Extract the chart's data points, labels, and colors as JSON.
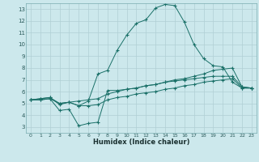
{
  "xlabel": "Humidex (Indice chaleur)",
  "background_color": "#cce8ec",
  "grid_color": "#b0cfd4",
  "line_color": "#1a7068",
  "xlim": [
    -0.5,
    23.5
  ],
  "ylim": [
    2.5,
    13.5
  ],
  "xticks": [
    0,
    1,
    2,
    3,
    4,
    5,
    6,
    7,
    8,
    9,
    10,
    11,
    12,
    13,
    14,
    15,
    16,
    17,
    18,
    19,
    20,
    21,
    22,
    23
  ],
  "yticks": [
    3,
    4,
    5,
    6,
    7,
    8,
    9,
    10,
    11,
    12,
    13
  ],
  "series1_x": [
    0,
    1,
    2,
    3,
    4,
    5,
    6,
    7,
    8,
    9,
    10,
    11,
    12,
    13,
    14,
    15,
    16,
    17,
    18,
    19,
    20,
    21,
    22,
    23
  ],
  "series1_y": [
    5.3,
    5.4,
    5.5,
    4.9,
    5.1,
    4.8,
    5.2,
    7.5,
    7.8,
    9.5,
    10.8,
    11.8,
    12.1,
    13.1,
    13.4,
    13.3,
    11.9,
    10.0,
    8.8,
    8.2,
    8.1,
    6.8,
    6.3,
    6.3
  ],
  "series2_x": [
    0,
    1,
    2,
    3,
    4,
    5,
    6,
    7,
    8,
    9,
    10,
    11,
    12,
    13,
    14,
    15,
    16,
    17,
    18,
    19,
    20,
    21,
    22,
    23
  ],
  "series2_y": [
    5.3,
    5.4,
    5.5,
    5.0,
    5.1,
    5.2,
    5.3,
    5.4,
    5.8,
    6.0,
    6.2,
    6.3,
    6.5,
    6.6,
    6.8,
    7.0,
    7.1,
    7.3,
    7.5,
    7.8,
    7.9,
    8.0,
    6.4,
    6.3
  ],
  "series3_x": [
    0,
    1,
    2,
    3,
    4,
    5,
    6,
    7,
    8,
    9,
    10,
    11,
    12,
    13,
    14,
    15,
    16,
    17,
    18,
    19,
    20,
    21,
    22,
    23
  ],
  "series3_y": [
    5.3,
    5.3,
    5.4,
    4.4,
    4.5,
    3.1,
    3.3,
    3.4,
    6.1,
    6.1,
    6.2,
    6.3,
    6.5,
    6.6,
    6.8,
    6.9,
    7.0,
    7.1,
    7.2,
    7.3,
    7.3,
    7.3,
    6.4,
    6.3
  ],
  "series4_x": [
    0,
    1,
    2,
    3,
    4,
    5,
    6,
    7,
    8,
    9,
    10,
    11,
    12,
    13,
    14,
    15,
    16,
    17,
    18,
    19,
    20,
    21,
    22,
    23
  ],
  "series4_y": [
    5.3,
    5.3,
    5.4,
    5.0,
    5.1,
    4.8,
    4.8,
    4.9,
    5.3,
    5.5,
    5.6,
    5.8,
    5.9,
    6.0,
    6.2,
    6.3,
    6.5,
    6.6,
    6.8,
    6.9,
    7.0,
    7.1,
    6.3,
    6.3
  ]
}
